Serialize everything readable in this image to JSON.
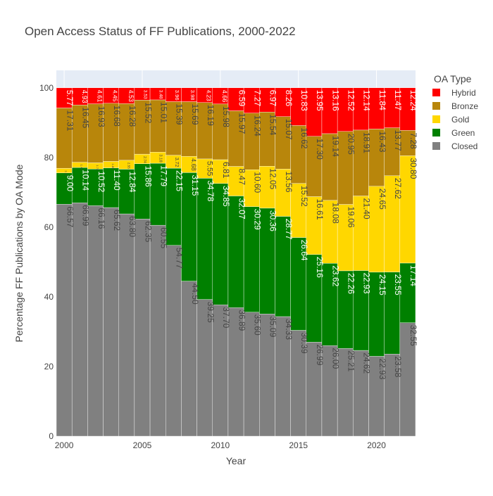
{
  "chart_data": {
    "type": "bar",
    "stacked": true,
    "title": "Open Access Status of FF Publications, 2000-2022",
    "xlabel": "Year",
    "ylabel": "Percentage FF Publications by OA Mode",
    "xlim": [
      1999.5,
      2022.5
    ],
    "ylim": [
      0,
      105
    ],
    "x_ticks": [
      2000,
      2005,
      2010,
      2015,
      2020
    ],
    "y_ticks": [
      0,
      20,
      40,
      60,
      80,
      100
    ],
    "grid": true,
    "legend_position": "top-right",
    "legend_title": "OA Type",
    "x": [
      2000,
      2001,
      2002,
      2003,
      2004,
      2005,
      2006,
      2007,
      2008,
      2009,
      2010,
      2011,
      2012,
      2013,
      2014,
      2015,
      2016,
      2017,
      2018,
      2019,
      2020,
      2021,
      2022
    ],
    "series": [
      {
        "name": "Closed",
        "color": "#808080",
        "label_color": "#444444",
        "values": [
          66.57,
          66.99,
          66.16,
          65.62,
          63.8,
          62.35,
          60.55,
          54.77,
          44.5,
          39.25,
          37.7,
          36.89,
          35.6,
          35.09,
          34.33,
          30.39,
          26.99,
          26.0,
          25.21,
          24.62,
          22.93,
          23.58,
          32.55
        ]
      },
      {
        "name": "Green",
        "color": "#008000",
        "label_color": "#ffffff",
        "values": [
          9.0,
          10.14,
          10.52,
          11.4,
          12.84,
          15.86,
          17.79,
          22.15,
          31.15,
          34.78,
          34.85,
          32.07,
          30.29,
          30.36,
          28.77,
          26.64,
          25.16,
          23.62,
          22.26,
          22.93,
          24.15,
          23.55,
          17.14
        ]
      },
      {
        "name": "Gold",
        "color": "#ffd700",
        "label_color": "#444444",
        "values": [
          1.33,
          1.49,
          1.78,
          1.85,
          2.55,
          2.74,
          3.18,
          3.72,
          4.68,
          5.55,
          6.81,
          8.47,
          10.6,
          12.05,
          13.56,
          15.52,
          16.61,
          18.08,
          19.06,
          21.4,
          24.65,
          27.62,
          30.8
        ]
      },
      {
        "name": "Bronze",
        "color": "#b8860b",
        "label_color": "#444444",
        "values": [
          17.31,
          16.45,
          16.93,
          16.68,
          16.28,
          15.52,
          15.01,
          15.39,
          15.69,
          16.19,
          15.98,
          15.97,
          16.24,
          15.54,
          15.07,
          16.62,
          17.3,
          19.14,
          20.95,
          18.91,
          16.43,
          13.77,
          7.28
        ]
      },
      {
        "name": "Hybrid",
        "color": "#ff0000",
        "label_color": "#ffffff",
        "values": [
          5.77,
          4.93,
          4.61,
          4.45,
          4.53,
          3.53,
          3.48,
          3.96,
          3.98,
          4.23,
          4.66,
          6.59,
          7.27,
          6.97,
          8.26,
          10.83,
          13.95,
          13.16,
          12.52,
          12.14,
          11.84,
          11.47,
          12.24
        ]
      }
    ],
    "legend_order": [
      "Hybrid",
      "Bronze",
      "Gold",
      "Green",
      "Closed"
    ]
  }
}
